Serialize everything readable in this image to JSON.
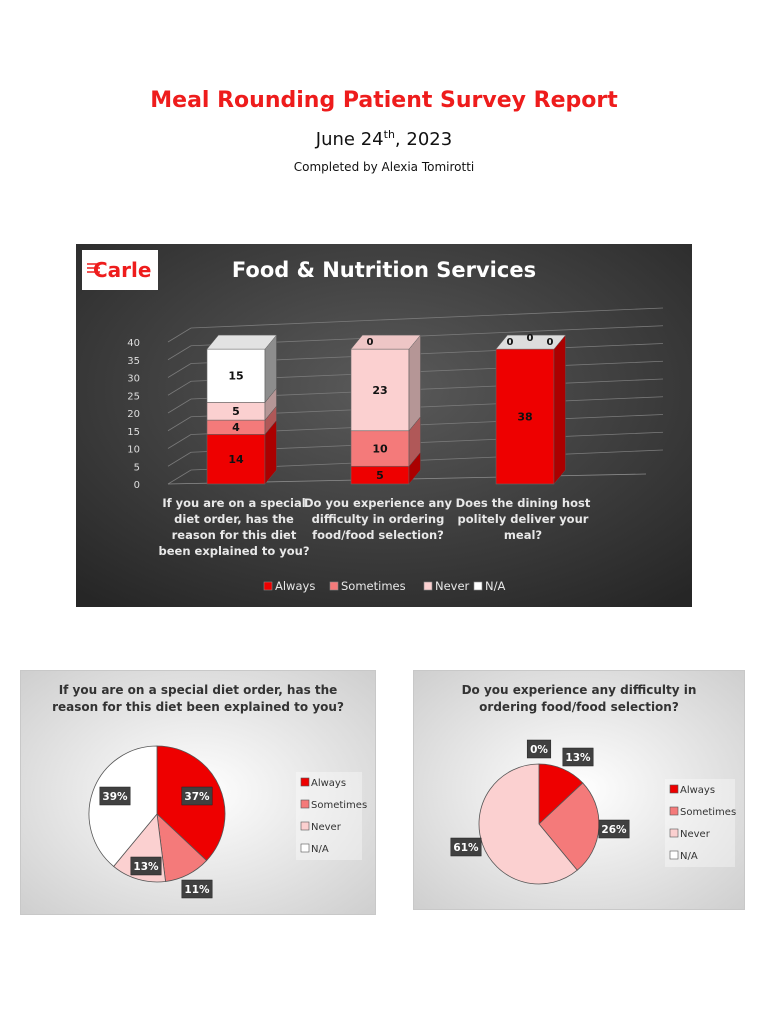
{
  "header": {
    "title": "Meal Rounding Patient Survey Report",
    "date_prefix": "June 24",
    "date_sup": "th",
    "date_suffix": ", 2023",
    "byline": "Completed by Alexia Tomirotti"
  },
  "colors": {
    "always": "#ee0000",
    "sometimes": "#f47a7a",
    "never": "#fbd0d0",
    "na": "#ffffff",
    "title_red": "#ee1c1c"
  },
  "chart_data": [
    {
      "type": "bar",
      "stacked": true,
      "title": "Food & Nutrition Services",
      "logo_text": "Carle",
      "categories": [
        "If you are on a special diet order, has the reason for this diet been explained to you?",
        "Do you experience any difficulty in ordering food/food selection?",
        "Does the dining host politely deliver your meal?"
      ],
      "category_lines": [
        [
          "If you are on a special",
          "diet order, has the",
          "reason for this diet",
          "been explained to you?"
        ],
        [
          "Do you experience any",
          "difficulty in ordering",
          "food/food selection?"
        ],
        [
          "Does the dining host",
          "politely deliver your",
          "meal?"
        ]
      ],
      "series": [
        {
          "name": "Always",
          "values": [
            14,
            5,
            38
          ]
        },
        {
          "name": "Sometimes",
          "values": [
            4,
            10,
            0
          ]
        },
        {
          "name": "Never",
          "values": [
            5,
            23,
            0
          ]
        },
        {
          "name": "N/A",
          "values": [
            15,
            0,
            0
          ]
        }
      ],
      "yticks": [
        0,
        5,
        10,
        15,
        20,
        25,
        30,
        35,
        40
      ],
      "ylim": [
        0,
        40
      ],
      "legend": "bottom"
    },
    {
      "type": "pie",
      "title_lines": [
        "If you are on a special diet order, has the",
        "reason for this diet been explained to you?"
      ],
      "labels": [
        "Always",
        "Sometimes",
        "Never",
        "N/A"
      ],
      "values": [
        37,
        11,
        13,
        39
      ],
      "value_labels": [
        "37%",
        "11%",
        "13%",
        "39%"
      ],
      "legend": "right"
    },
    {
      "type": "pie",
      "title_lines": [
        "Do you experience any difficulty in",
        "ordering food/food selection?"
      ],
      "labels": [
        "Always",
        "Sometimes",
        "Never",
        "N/A"
      ],
      "values": [
        13,
        26,
        61,
        0
      ],
      "value_labels": [
        "13%",
        "26%",
        "61%",
        "0%"
      ],
      "legend": "right"
    }
  ]
}
